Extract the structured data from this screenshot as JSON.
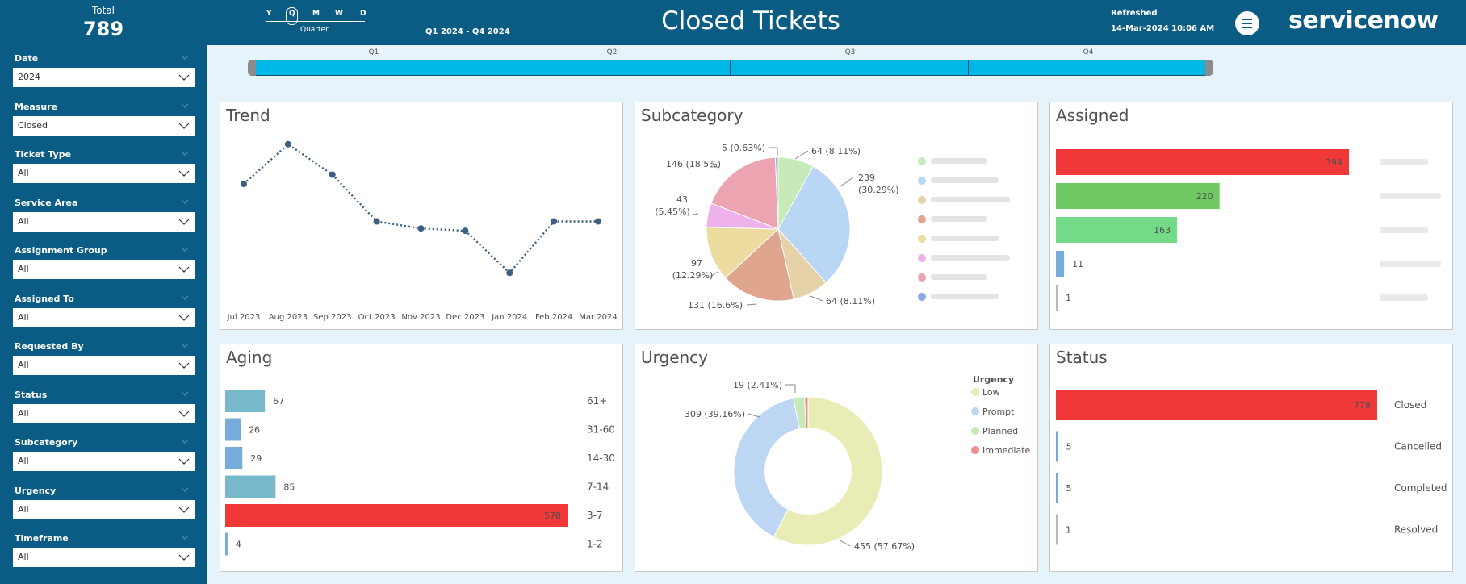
{
  "header": {
    "total_label": "Total",
    "total_value": "789",
    "granularity": {
      "options": [
        "Y",
        "Q",
        "M",
        "W",
        "D"
      ],
      "selected": "Q",
      "caption": "Quarter"
    },
    "range": "Q1 2024 - Q4 2024",
    "title": "Closed Tickets",
    "refreshed_label": "Refreshed",
    "refreshed_value": "14-Mar-2024 10:06 AM",
    "logo": "servicenow",
    "menu_icon": "report-icon"
  },
  "filters": [
    {
      "label": "Date",
      "value": "2024"
    },
    {
      "label": "Measure",
      "value": "Closed"
    },
    {
      "label": "Ticket Type",
      "value": "All"
    },
    {
      "label": "Service Area",
      "value": "All"
    },
    {
      "label": "Assignment Group",
      "value": "All"
    },
    {
      "label": "Assigned To",
      "value": "All"
    },
    {
      "label": "Requested By",
      "value": "All"
    },
    {
      "label": "Status",
      "value": "All"
    },
    {
      "label": "Subcategory",
      "value": "All"
    },
    {
      "label": "Urgency",
      "value": "All"
    },
    {
      "label": "Timeframe",
      "value": "All"
    }
  ],
  "timeline": {
    "labels": [
      "Q1",
      "Q2",
      "Q3",
      "Q4"
    ]
  },
  "colors": {
    "header_bg": "#0b5c84",
    "page_bg": "#e7f3fa",
    "timeline_fill": "#00b8e8",
    "trend_line": "#3b5f82",
    "highlight_red": "#f03838",
    "bar_green": "#6fc965",
    "bar_green2": "#74da87",
    "bar_blue": "#75acd9",
    "bar_teal": "#79b9cc"
  },
  "panels": {
    "trend": "Trend",
    "subcategory": "Subcategory",
    "assigned": "Assigned",
    "aging": "Aging",
    "urgency": "Urgency",
    "status": "Status"
  },
  "chart_data": [
    {
      "id": "trend",
      "type": "line",
      "title": "Trend",
      "categories": [
        "Jul 2023",
        "Aug 2023",
        "Sep 2023",
        "Oct 2023",
        "Nov 2023",
        "Dec 2023",
        "Jan 2024",
        "Feb 2024",
        "Mar 2024"
      ],
      "values": [
        121,
        138,
        125,
        105,
        102,
        101,
        83,
        105,
        105
      ],
      "line_style": "dotted",
      "grid": false
    },
    {
      "id": "subcategory",
      "type": "pie",
      "title": "Subcategory",
      "slices": [
        {
          "value": 64,
          "label": "64 (8.11%)",
          "color": "#c6eab8"
        },
        {
          "value": 239,
          "label": "239 (30.29%)",
          "color": "#b9d6f5"
        },
        {
          "value": 64,
          "label": "64 (8.11%)",
          "color": "#e6d2a9"
        },
        {
          "value": 131,
          "label": "131 (16.6%)",
          "color": "#dfa58d"
        },
        {
          "value": 97,
          "label": "97 (12.29%)",
          "color": "#ecdca0"
        },
        {
          "value": 43,
          "label": "43 (5.45%)",
          "color": "#eeb1ec"
        },
        {
          "value": 146,
          "label": "146 (18.5%)",
          "color": "#eca5b0"
        },
        {
          "value": 5,
          "label": "5 (0.63%)",
          "color": "#8ea8e6"
        }
      ],
      "legend": "right"
    },
    {
      "id": "assigned",
      "type": "bar",
      "orientation": "horizontal",
      "title": "Assigned",
      "values": [
        394,
        220,
        163,
        11,
        1
      ],
      "colors": [
        "#f03838",
        "#6fc965",
        "#74da87",
        "#75acd9",
        "#b9b9b9"
      ],
      "xlim": [
        0,
        394
      ]
    },
    {
      "id": "aging",
      "type": "bar",
      "orientation": "horizontal",
      "title": "Aging",
      "categories": [
        "61+",
        "31-60",
        "14-30",
        "7-14",
        "3-7",
        "1-2"
      ],
      "values": [
        67,
        26,
        29,
        85,
        578,
        4
      ],
      "colors": [
        "#79b9cc",
        "#75acd9",
        "#75acd9",
        "#79b9cc",
        "#f03838",
        "#75acd9"
      ],
      "xlim": [
        0,
        578
      ]
    },
    {
      "id": "urgency",
      "type": "pie",
      "title": "Urgency",
      "donut": true,
      "legend_title": "Urgency",
      "slices": [
        {
          "name": "Low",
          "value": 455,
          "label": "455 (57.67%)",
          "color": "#eaecb5"
        },
        {
          "name": "Prompt",
          "value": 309,
          "label": "309 (39.16%)",
          "color": "#bcd6f3"
        },
        {
          "name": "Planned",
          "value": 19,
          "label": "19 (2.41%)",
          "color": "#c6e9b5"
        },
        {
          "name": "Immediate",
          "value": 6,
          "label": "",
          "color": "#ee8f8f"
        }
      ],
      "legend": "right"
    },
    {
      "id": "status",
      "type": "bar",
      "orientation": "horizontal",
      "title": "Status",
      "categories": [
        "Closed",
        "Cancelled",
        "Completed",
        "Resolved"
      ],
      "values": [
        778,
        5,
        5,
        1
      ],
      "colors": [
        "#f03838",
        "#75acd9",
        "#75acd9",
        "#b9b9b9"
      ],
      "xlim": [
        0,
        778
      ]
    }
  ]
}
